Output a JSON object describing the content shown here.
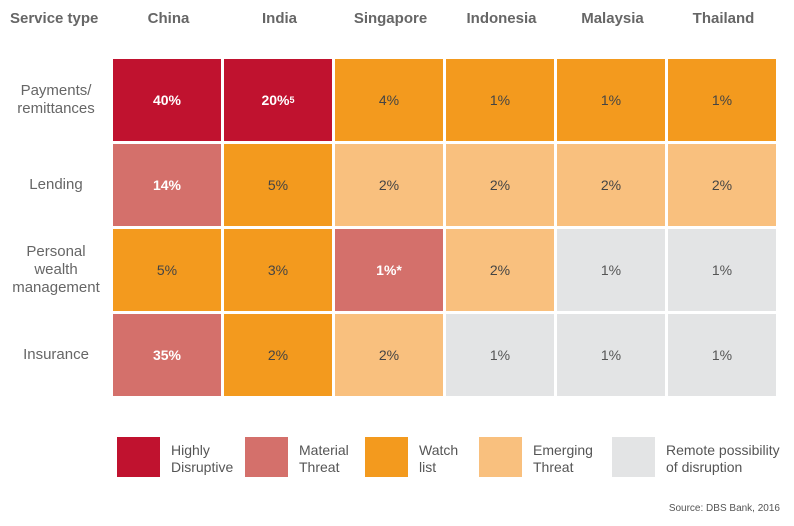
{
  "chart_data": {
    "type": "heatmap",
    "header": "Service type",
    "columns": [
      "China",
      "India",
      "Singapore",
      "Indonesia",
      "Malaysia",
      "Thailand"
    ],
    "rows": [
      {
        "label": "Payments/\nremittances",
        "cells": [
          {
            "text": "40%",
            "level": "highly"
          },
          {
            "text": "20%",
            "sup": "5",
            "level": "highly"
          },
          {
            "text": "4%",
            "level": "watch"
          },
          {
            "text": "1%",
            "level": "watch"
          },
          {
            "text": "1%",
            "level": "watch"
          },
          {
            "text": "1%",
            "level": "watch"
          }
        ]
      },
      {
        "label": "Lending",
        "cells": [
          {
            "text": "14%",
            "level": "material"
          },
          {
            "text": "5%",
            "level": "watch"
          },
          {
            "text": "2%",
            "level": "emerging"
          },
          {
            "text": "2%",
            "level": "emerging"
          },
          {
            "text": "2%",
            "level": "emerging"
          },
          {
            "text": "2%",
            "level": "emerging"
          }
        ]
      },
      {
        "label": "Personal\nwealth\nmanagement",
        "cells": [
          {
            "text": "5%",
            "level": "watch"
          },
          {
            "text": "3%",
            "level": "watch"
          },
          {
            "text": "1%*",
            "level": "material"
          },
          {
            "text": "2%",
            "level": "emerging"
          },
          {
            "text": "1%",
            "level": "remote"
          },
          {
            "text": "1%",
            "level": "remote"
          }
        ]
      },
      {
        "label": "Insurance",
        "cells": [
          {
            "text": "35%",
            "level": "material"
          },
          {
            "text": "2%",
            "level": "watch"
          },
          {
            "text": "2%",
            "level": "emerging"
          },
          {
            "text": "1%",
            "level": "remote"
          },
          {
            "text": "1%",
            "level": "remote"
          },
          {
            "text": "1%",
            "level": "remote"
          }
        ]
      }
    ],
    "legend": [
      {
        "key": "highly",
        "label": "Highly\nDisruptive",
        "color": "#c0122f"
      },
      {
        "key": "material",
        "label": "Material\nThreat",
        "color": "#d4706b"
      },
      {
        "key": "watch",
        "label": "Watch\nlist",
        "color": "#f39a1e"
      },
      {
        "key": "emerging",
        "label": "Emerging\nThreat",
        "color": "#f9c07e"
      },
      {
        "key": "remote",
        "label": "Remote possibility\nof disruption",
        "color": "#e3e4e5"
      }
    ],
    "source": "Source: DBS Bank, 2016"
  }
}
